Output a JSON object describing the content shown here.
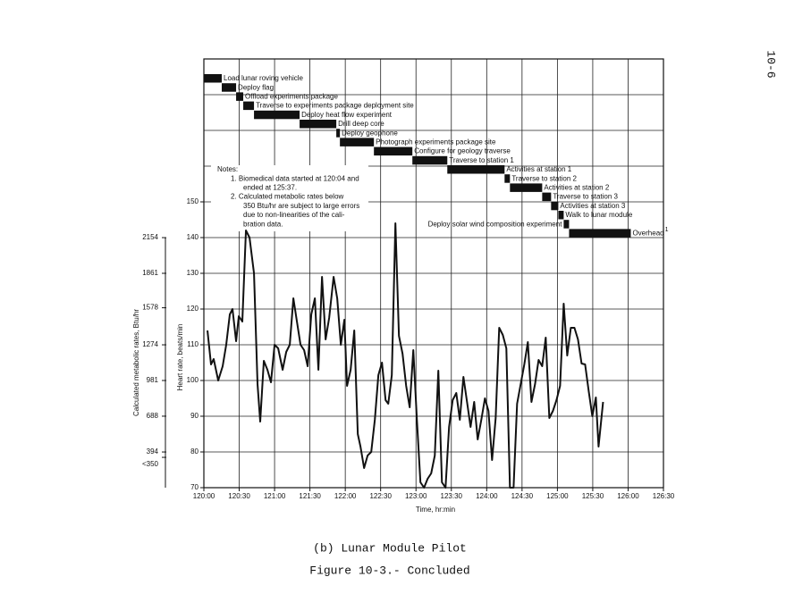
{
  "page_number": "10-6",
  "caption": "(b) Lunar Module Pilot",
  "figure_label": "Figure 10-3.- Concluded",
  "chart_data": {
    "type": "line",
    "xlabel": "Time, hr:min",
    "ylabel": "Heart rate, beats/min",
    "y2label": "Calculated metabolic rates, Btu/hr",
    "xlim": [
      120,
      126.5
    ],
    "xticks": [
      {
        "value": 120,
        "label": "120:00"
      },
      {
        "value": 120.5,
        "label": "120:30"
      },
      {
        "value": 121,
        "label": "121:00"
      },
      {
        "value": 121.5,
        "label": "121:30"
      },
      {
        "value": 122,
        "label": "122:00"
      },
      {
        "value": 122.5,
        "label": "122:30"
      },
      {
        "value": 123,
        "label": "123:00"
      },
      {
        "value": 123.5,
        "label": "123:30"
      },
      {
        "value": 124,
        "label": "124:00"
      },
      {
        "value": 124.5,
        "label": "124:30"
      },
      {
        "value": 125,
        "label": "125:00"
      },
      {
        "value": 125.5,
        "label": "125:30"
      },
      {
        "value": 126,
        "label": "126:00"
      },
      {
        "value": 126.5,
        "label": "126:30"
      }
    ],
    "ylim": [
      70,
      190
    ],
    "yticks": [
      70,
      80,
      90,
      100,
      110,
      120,
      130,
      140,
      150
    ],
    "ygrid": [
      70,
      80,
      90,
      100,
      110,
      120,
      130,
      140,
      150,
      160,
      170,
      180,
      190
    ],
    "y2lim": [
      101,
      3621
    ],
    "y2ticks": [
      2154,
      1861,
      1578,
      1274,
      981,
      688,
      394,
      {
        "value": 350,
        "label": "<350"
      }
    ],
    "grid": true,
    "color": "#111111",
    "x": [
      120.051,
      120.101,
      120.139,
      120.203,
      120.266,
      120.316,
      120.367,
      120.405,
      120.456,
      120.494,
      120.544,
      120.595,
      120.646,
      120.709,
      120.759,
      120.797,
      120.848,
      120.899,
      120.949,
      121.0,
      121.051,
      121.114,
      121.165,
      121.215,
      121.266,
      121.316,
      121.367,
      121.418,
      121.468,
      121.519,
      121.57,
      121.62,
      121.671,
      121.722,
      121.772,
      121.835,
      121.886,
      121.937,
      121.987,
      122.025,
      122.076,
      122.127,
      122.177,
      122.215,
      122.266,
      122.316,
      122.367,
      122.418,
      122.468,
      122.519,
      122.57,
      122.608,
      122.658,
      122.709,
      122.759,
      122.81,
      122.861,
      122.911,
      122.962,
      123.013,
      123.063,
      123.114,
      123.165,
      123.215,
      123.266,
      123.316,
      123.367,
      123.418,
      123.468,
      123.519,
      123.57,
      123.62,
      123.671,
      123.722,
      123.772,
      123.823,
      123.873,
      123.924,
      123.975,
      124.025,
      124.076,
      124.127,
      124.177,
      124.228,
      124.278,
      124.329,
      124.38,
      124.43,
      124.481,
      124.532,
      124.582,
      124.633,
      124.684,
      124.734,
      124.785,
      124.835,
      124.886,
      124.937,
      124.987,
      125.038,
      125.089,
      125.139,
      125.19,
      125.241,
      125.291,
      125.342,
      125.392,
      125.443,
      125.494,
      125.544,
      125.582,
      125.646
    ],
    "values": [
      114,
      104.5,
      106,
      100,
      104,
      110,
      118.5,
      120,
      111,
      118,
      116.5,
      142,
      140,
      130,
      99,
      88.5,
      105.5,
      103,
      99.5,
      110,
      109,
      103,
      108,
      110,
      123,
      116.5,
      110,
      108.5,
      104,
      118.5,
      123,
      103,
      129,
      111.5,
      117.5,
      129,
      123,
      110,
      117,
      98.5,
      103,
      114,
      85,
      81.5,
      75.5,
      79,
      80,
      89,
      101.5,
      105,
      94.5,
      93.5,
      101.5,
      144,
      112.5,
      107.5,
      98.5,
      92.5,
      108.5,
      89,
      71.5,
      70,
      72.5,
      74,
      79,
      102.75,
      71.5,
      70,
      87,
      94.5,
      96.5,
      89,
      101,
      94,
      87,
      94,
      83.5,
      89,
      95,
      91.5,
      77.75,
      89.5,
      114.75,
      112.75,
      109,
      70,
      70,
      93.5,
      99,
      104.5,
      110.75,
      94,
      99,
      105.75,
      104,
      112,
      89.5,
      91.5,
      94.5,
      98.5,
      121.5,
      107,
      114.75,
      114.75,
      111.5,
      104.75,
      104.5,
      97,
      90,
      95.25,
      81.5,
      94
    ],
    "activities": [
      {
        "label": "Load lunar roving vehicle",
        "start": 120.0,
        "end": 120.253
      },
      {
        "label": "Deploy flag",
        "start": 120.253,
        "end": 120.456
      },
      {
        "label": "Offload experiments package",
        "start": 120.456,
        "end": 120.557
      },
      {
        "label": "Traverse to experiments package deployment site",
        "start": 120.557,
        "end": 120.709
      },
      {
        "label": "Deploy heat flow experiment",
        "start": 120.709,
        "end": 121.354
      },
      {
        "label": "Drill deep core",
        "start": 121.354,
        "end": 121.873
      },
      {
        "label": "Deploy geophone",
        "start": 121.873,
        "end": 121.924
      },
      {
        "label": "Photograph experiments package site",
        "start": 121.924,
        "end": 122.405
      },
      {
        "label": "Configure for geology traverse",
        "start": 122.405,
        "end": 122.949
      },
      {
        "label": "Traverse to station 1",
        "start": 122.949,
        "end": 123.443
      },
      {
        "label": "Activities at station 1",
        "start": 123.443,
        "end": 124.253
      },
      {
        "label": "Traverse to station 2",
        "start": 124.253,
        "end": 124.329
      },
      {
        "label": "Activities at station 2",
        "start": 124.329,
        "end": 124.785
      },
      {
        "label": "Traverse to station 3",
        "start": 124.785,
        "end": 124.911
      },
      {
        "label": "Activities at station 3",
        "start": 124.911,
        "end": 125.013
      },
      {
        "label": "Walk to lunar module",
        "start": 125.013,
        "end": 125.089
      },
      {
        "label": "Deploy solar wind composition experiment",
        "start": 125.089,
        "end": 125.165
      },
      {
        "label": "Overhead",
        "start": 125.165,
        "end": 126.038
      }
    ],
    "footnote_marker": "1",
    "notes": [
      "Notes:",
      "1.  Biomedical data started at 120:04 and",
      "ended at 125:37.",
      "2.  Calculated metabolic rates below",
      "350 Btu/hr are subject to large errors",
      "due to non-linearities of the cali-",
      "bration data."
    ]
  }
}
